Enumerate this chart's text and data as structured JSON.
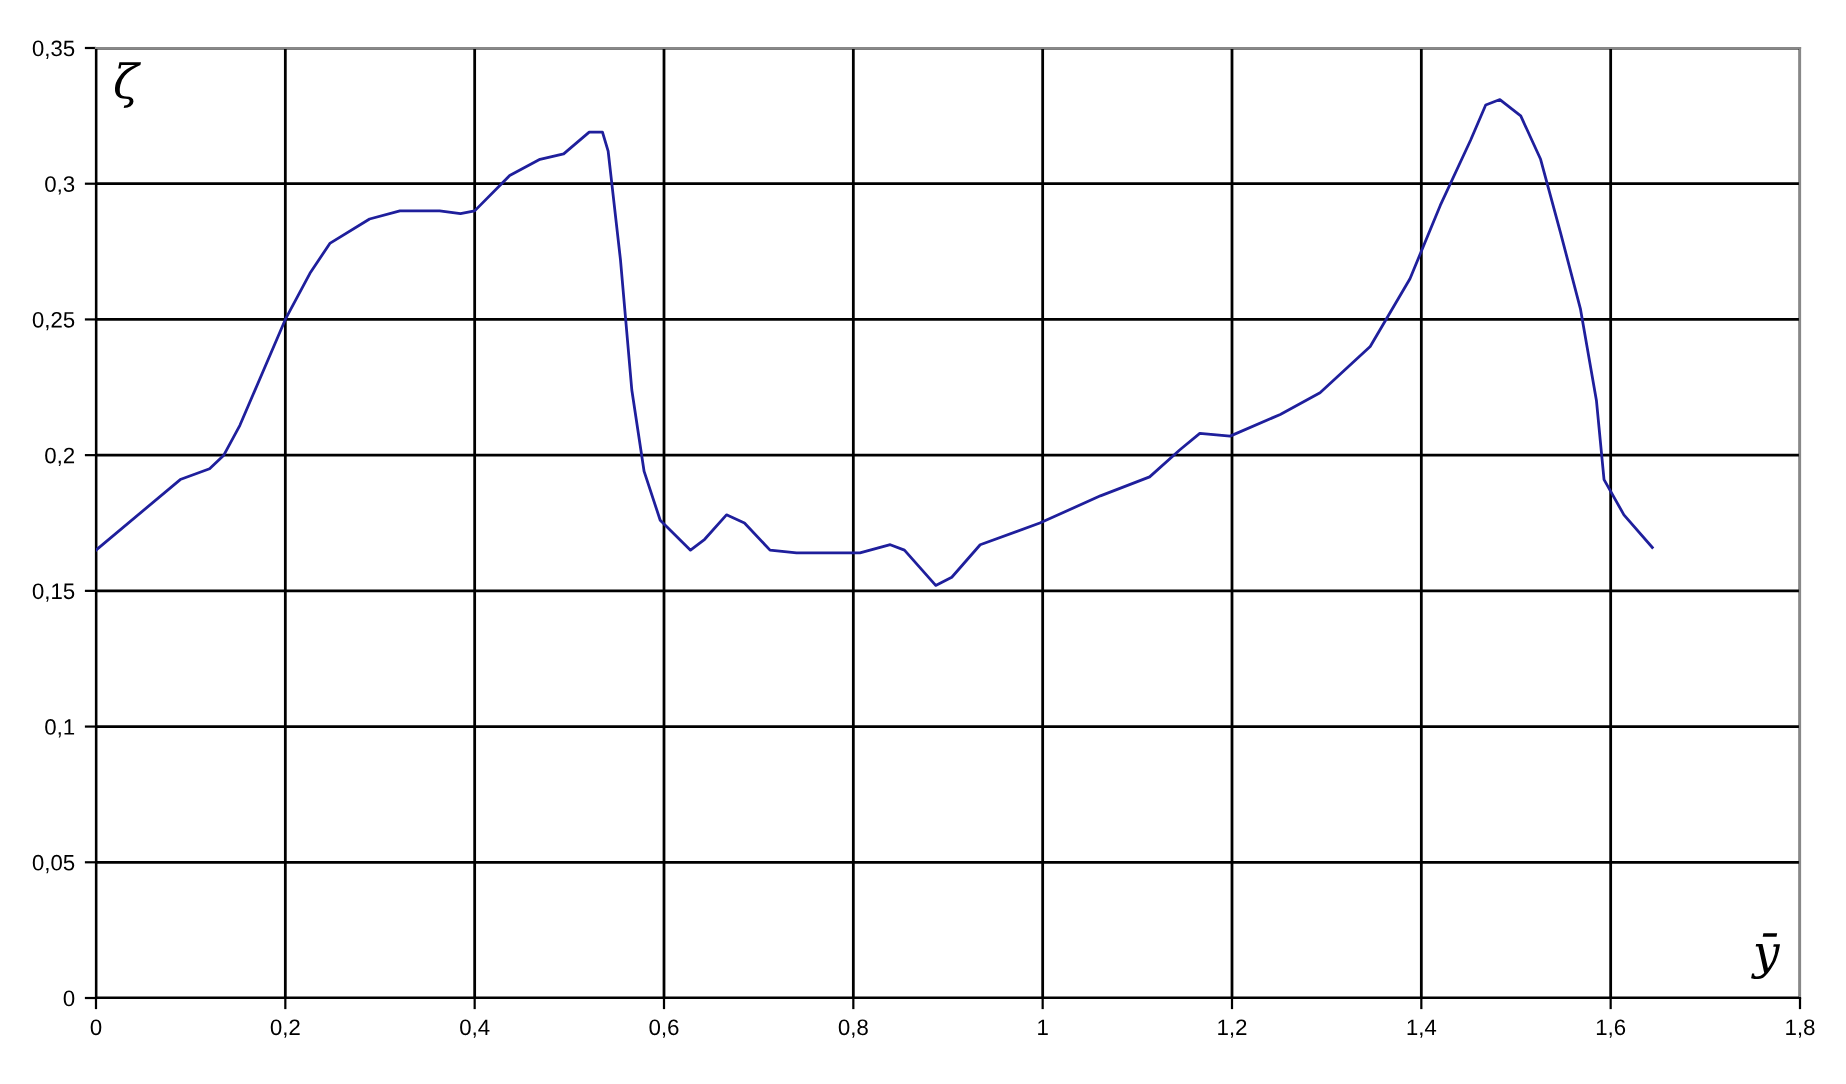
{
  "chart_data": {
    "type": "line",
    "xlabel": "ȳ",
    "ylabel": "ζ",
    "xlim": [
      0,
      1.8
    ],
    "ylim": [
      0,
      0.35
    ],
    "xticks": [
      {
        "value": 0,
        "label": "0"
      },
      {
        "value": 0.2,
        "label": "0,2"
      },
      {
        "value": 0.4,
        "label": "0,4"
      },
      {
        "value": 0.6,
        "label": "0,6"
      },
      {
        "value": 0.8,
        "label": "0,8"
      },
      {
        "value": 1,
        "label": "1"
      },
      {
        "value": 1.2,
        "label": "1,2"
      },
      {
        "value": 1.4,
        "label": "1,4"
      },
      {
        "value": 1.6,
        "label": "1,6"
      },
      {
        "value": 1.8,
        "label": "1,8"
      }
    ],
    "yticks": [
      {
        "value": 0,
        "label": "0"
      },
      {
        "value": 0.05,
        "label": "0,05"
      },
      {
        "value": 0.1,
        "label": "0,1"
      },
      {
        "value": 0.15,
        "label": "0,15"
      },
      {
        "value": 0.2,
        "label": "0,2"
      },
      {
        "value": 0.25,
        "label": "0,25"
      },
      {
        "value": 0.3,
        "label": "0,3"
      },
      {
        "value": 0.35,
        "label": "0,35"
      }
    ],
    "grid": true,
    "marker": "none",
    "line_style": "solid",
    "series": [
      {
        "color": "#1f1f9c",
        "x": [
          0,
          0.089,
          0.12,
          0.135,
          0.152,
          0.2,
          0.226,
          0.247,
          0.289,
          0.321,
          0.363,
          0.385,
          0.4,
          0.437,
          0.469,
          0.494,
          0.521,
          0.535,
          0.541,
          0.554,
          0.566,
          0.579,
          0.596,
          0.628,
          0.643,
          0.666,
          0.685,
          0.712,
          0.74,
          0.807,
          0.839,
          0.854,
          0.887,
          0.904,
          0.934,
          0.997,
          1.061,
          1.113,
          1.145,
          1.166,
          1.198,
          1.251,
          1.293,
          1.346,
          1.388,
          1.42,
          1.452,
          1.468,
          1.483,
          1.505,
          1.526,
          1.547,
          1.568,
          1.585,
          1.593,
          1.614,
          1.644
        ],
        "values": [
          0.165,
          0.191,
          0.195,
          0.2,
          0.211,
          0.25,
          0.267,
          0.278,
          0.287,
          0.29,
          0.29,
          0.289,
          0.29,
          0.303,
          0.309,
          0.311,
          0.319,
          0.319,
          0.312,
          0.272,
          0.224,
          0.194,
          0.176,
          0.165,
          0.169,
          0.178,
          0.175,
          0.165,
          0.164,
          0.164,
          0.167,
          0.165,
          0.152,
          0.155,
          0.167,
          0.175,
          0.185,
          0.192,
          0.202,
          0.208,
          0.207,
          0.215,
          0.223,
          0.24,
          0.265,
          0.292,
          0.316,
          0.329,
          0.331,
          0.325,
          0.309,
          0.282,
          0.254,
          0.22,
          0.191,
          0.178,
          0.166
        ]
      }
    ]
  }
}
